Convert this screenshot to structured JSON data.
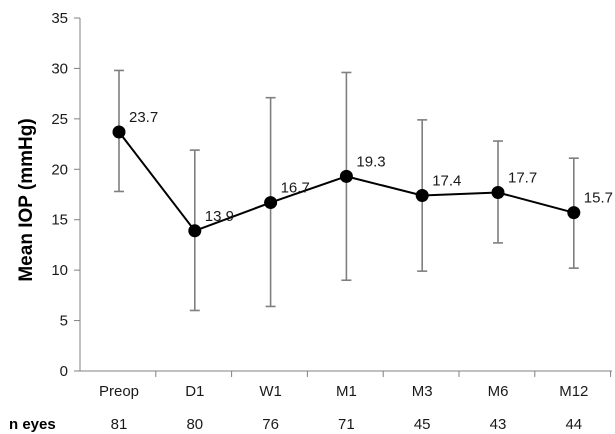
{
  "chart_data": {
    "type": "line",
    "title": "",
    "xlabel": "",
    "ylabel": "Mean IOP (mmHg)",
    "ylim": [
      0,
      35
    ],
    "yticks": [
      0,
      5,
      10,
      15,
      20,
      25,
      30,
      35
    ],
    "grid": false,
    "categories": [
      "Preop",
      "D1",
      "W1",
      "M1",
      "M3",
      "M6",
      "M12"
    ],
    "series": [
      {
        "values": [
          23.7,
          13.9,
          16.7,
          19.3,
          17.4,
          17.7,
          15.7
        ],
        "labels": [
          "23.7",
          "13.9",
          "16.7",
          "19.3",
          "17.4",
          "17.7",
          "15.7"
        ],
        "error_low": [
          17.8,
          6.0,
          6.4,
          9.0,
          9.9,
          12.7,
          10.2
        ],
        "error_high": [
          29.8,
          21.9,
          27.1,
          29.6,
          24.9,
          22.8,
          21.1
        ],
        "color": "#000000"
      }
    ],
    "n_row": {
      "title": "n eyes",
      "values": [
        "81",
        "80",
        "76",
        "71",
        "45",
        "43",
        "44"
      ]
    },
    "colors": {
      "axis": "#808080",
      "errorbar": "#7f7f7f",
      "line": "#000000"
    }
  }
}
